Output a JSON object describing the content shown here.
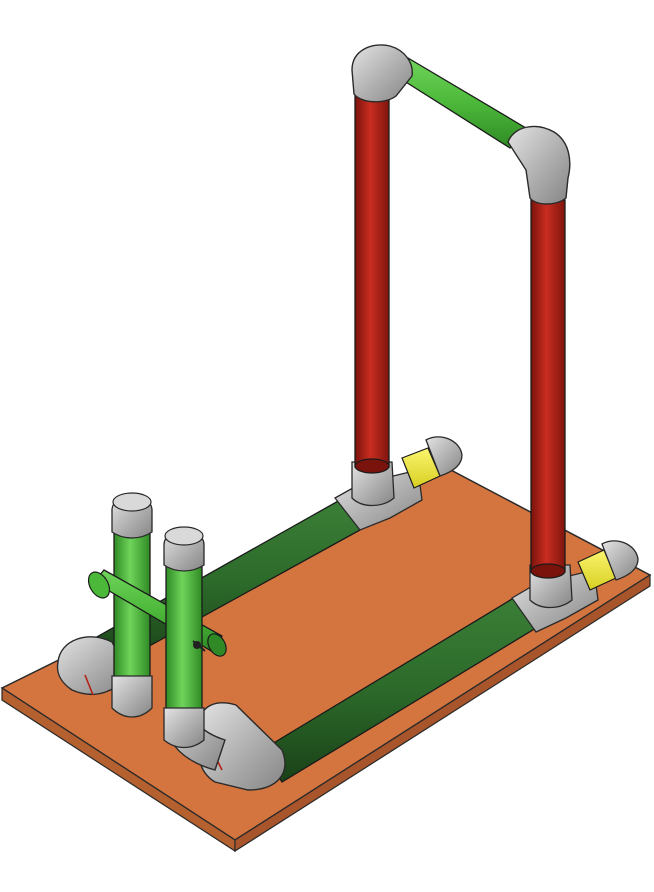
{
  "figure": {
    "kind": "isometric pipe frame assembly render",
    "colors": {
      "base_board": "#d4753f",
      "base_board_edge": "#a9552b",
      "fitting": "#a9a9a9",
      "fitting_light": "#d0d0d0",
      "pipe_light_green": "#4cb83a",
      "pipe_dark_green": "#2c6a2a",
      "pipe_red": "#b42217",
      "pipe_yellow": "#f0e83c",
      "outline": "#2a2a2a"
    },
    "parts": [
      {
        "id": "base-board",
        "label": ""
      },
      {
        "id": "left-upright-red-pipe",
        "label": ""
      },
      {
        "id": "right-upright-red-pipe",
        "label": ""
      },
      {
        "id": "top-crossbar-green-pipe",
        "label": ""
      },
      {
        "id": "back-rail-dark-green-pipe",
        "label": ""
      },
      {
        "id": "front-rail-dark-green-pipe",
        "label": ""
      },
      {
        "id": "yellow-end-caps",
        "label": ""
      },
      {
        "id": "gray-elbow-fittings",
        "label": ""
      },
      {
        "id": "gray-tee-fittings",
        "label": ""
      },
      {
        "id": "short-green-posts",
        "label": ""
      },
      {
        "id": "diagonal-green-pipe",
        "label": ""
      }
    ]
  }
}
